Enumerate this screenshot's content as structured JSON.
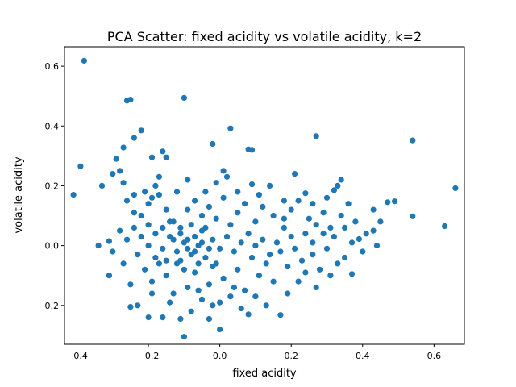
{
  "chart_data": {
    "type": "scatter",
    "title": "PCA Scatter: fixed acidity vs volatile acidity, k=2",
    "xlabel": "fixed acidity",
    "ylabel": "volatile acidity",
    "xlim": [
      -0.435,
      0.685
    ],
    "ylim": [
      -0.33,
      0.665
    ],
    "x_ticks": [
      -0.4,
      -0.2,
      0.0,
      0.2,
      0.4,
      0.6
    ],
    "x_tick_labels": [
      "−0.4",
      "−0.2",
      "0.0",
      "0.2",
      "0.4",
      "0.6"
    ],
    "y_ticks": [
      -0.2,
      0.0,
      0.2,
      0.4,
      0.6
    ],
    "y_tick_labels": [
      "−0.2",
      "0.0",
      "0.2",
      "0.4",
      "0.6"
    ],
    "grid": false,
    "legend": "none",
    "marker_color": "#1f77b4",
    "points": [
      [
        -0.38,
        0.618
      ],
      [
        -0.1,
        0.494
      ],
      [
        -0.26,
        0.485
      ],
      [
        -0.25,
        0.488
      ],
      [
        -0.22,
        0.385
      ],
      [
        0.03,
        0.392
      ],
      [
        0.27,
        0.366
      ],
      [
        0.54,
        0.352
      ],
      [
        -0.27,
        0.328
      ],
      [
        0.08,
        0.322
      ],
      [
        0.09,
        0.32
      ],
      [
        -0.39,
        0.265
      ],
      [
        -0.41,
        0.17
      ],
      [
        0.66,
        0.192
      ],
      [
        0.63,
        0.065
      ],
      [
        0.54,
        0.098
      ],
      [
        0.49,
        0.148
      ],
      [
        0.47,
        0.145
      ],
      [
        0.45,
        0.08
      ],
      [
        0.43,
        0.05
      ],
      [
        0.39,
        0.022
      ],
      [
        0.37,
        -0.095
      ],
      [
        -0.34,
        0.0
      ],
      [
        -0.31,
        0.015
      ],
      [
        -0.3,
        -0.02
      ],
      [
        -0.31,
        -0.1
      ],
      [
        -0.25,
        -0.205
      ],
      [
        -0.23,
        -0.2
      ],
      [
        -0.2,
        -0.24
      ],
      [
        -0.16,
        -0.24
      ],
      [
        -0.11,
        -0.245
      ],
      [
        -0.1,
        -0.305
      ],
      [
        -0.03,
        -0.245
      ],
      [
        0.0,
        -0.28
      ],
      [
        0.08,
        -0.23
      ],
      [
        0.17,
        -0.232
      ],
      [
        -0.29,
        0.29
      ],
      [
        -0.28,
        0.25
      ],
      [
        -0.24,
        0.36
      ],
      [
        -0.19,
        0.295
      ],
      [
        -0.16,
        0.315
      ],
      [
        -0.15,
        0.295
      ],
      [
        -0.02,
        0.34
      ],
      [
        -0.01,
        0.21
      ],
      [
        0.01,
        0.25
      ],
      [
        0.09,
        0.205
      ],
      [
        0.14,
        0.2
      ],
      [
        0.21,
        0.24
      ],
      [
        0.24,
        0.175
      ],
      [
        0.32,
        0.185
      ],
      [
        0.33,
        0.2
      ],
      [
        0.34,
        0.22
      ],
      [
        -0.33,
        0.2
      ],
      [
        -0.3,
        0.24
      ],
      [
        -0.27,
        0.21
      ],
      [
        -0.26,
        0.15
      ],
      [
        -0.24,
        0.11
      ],
      [
        -0.22,
        0.1
      ],
      [
        -0.2,
        0.14
      ],
      [
        -0.18,
        0.2
      ],
      [
        -0.17,
        0.17
      ],
      [
        -0.15,
        0.12
      ],
      [
        -0.13,
        0.08
      ],
      [
        -0.11,
        0.06
      ],
      [
        -0.09,
        0.12
      ],
      [
        -0.07,
        0.15
      ],
      [
        -0.05,
        0.1
      ],
      [
        -0.03,
        0.13
      ],
      [
        -0.01,
        0.09
      ],
      [
        0.01,
        0.16
      ],
      [
        0.03,
        0.07
      ],
      [
        0.05,
        0.11
      ],
      [
        0.07,
        0.14
      ],
      [
        0.1,
        0.08
      ],
      [
        0.12,
        0.13
      ],
      [
        0.15,
        0.1
      ],
      [
        0.18,
        0.06
      ],
      [
        0.2,
        0.12
      ],
      [
        0.22,
        0.15
      ],
      [
        0.25,
        0.09
      ],
      [
        0.27,
        0.07
      ],
      [
        0.29,
        0.11
      ],
      [
        0.31,
        0.06
      ],
      [
        0.34,
        0.1
      ],
      [
        0.36,
        0.14
      ],
      [
        0.38,
        0.08
      ],
      [
        0.41,
        0.04
      ],
      [
        0.43,
        0.12
      ],
      [
        0.44,
        0.0
      ],
      [
        0.4,
        -0.02
      ],
      [
        0.37,
        0.01
      ],
      [
        0.35,
        -0.04
      ],
      [
        0.33,
        -0.06
      ],
      [
        0.3,
        -0.01
      ],
      [
        0.28,
        -0.08
      ],
      [
        0.26,
        -0.03
      ],
      [
        0.23,
        -0.05
      ],
      [
        0.21,
        -0.01
      ],
      [
        0.19,
        -0.07
      ],
      [
        0.17,
        -0.02
      ],
      [
        0.15,
        -0.12
      ],
      [
        0.13,
        -0.06
      ],
      [
        0.11,
        -0.1
      ],
      [
        0.09,
        -0.04
      ],
      [
        0.07,
        -0.15
      ],
      [
        0.05,
        -0.08
      ],
      [
        0.03,
        -0.17
      ],
      [
        0.01,
        -0.11
      ],
      [
        -0.01,
        -0.06
      ],
      [
        -0.03,
        -0.13
      ],
      [
        -0.05,
        -0.18
      ],
      [
        -0.07,
        -0.09
      ],
      [
        -0.09,
        -0.14
      ],
      [
        -0.11,
        -0.05
      ],
      [
        -0.13,
        -0.16
      ],
      [
        -0.15,
        -0.1
      ],
      [
        -0.17,
        -0.06
      ],
      [
        -0.19,
        -0.12
      ],
      [
        -0.21,
        -0.08
      ],
      [
        -0.23,
        -0.03
      ],
      [
        -0.25,
        -0.13
      ],
      [
        -0.27,
        -0.06
      ],
      [
        -0.28,
        0.05
      ],
      [
        -0.26,
        0.02
      ],
      [
        -0.24,
        0.06
      ],
      [
        -0.22,
        0.03
      ],
      [
        -0.2,
        0.0
      ],
      [
        -0.18,
        0.04
      ],
      [
        -0.16,
        -0.01
      ],
      [
        -0.14,
        0.03
      ],
      [
        -0.12,
        -0.02
      ],
      [
        -0.1,
        0.01
      ],
      [
        -0.08,
        -0.03
      ],
      [
        -0.06,
        0.0
      ],
      [
        -0.04,
        -0.04
      ],
      [
        -0.02,
        0.02
      ],
      [
        0.0,
        -0.01
      ],
      [
        0.02,
        0.03
      ],
      [
        0.04,
        -0.02
      ],
      [
        0.06,
        0.01
      ],
      [
        0.08,
        0.04
      ],
      [
        0.1,
        0.0
      ],
      [
        0.12,
        0.02
      ],
      [
        0.14,
        -0.03
      ],
      [
        0.16,
        0.01
      ],
      [
        -0.13,
        0.02
      ],
      [
        -0.11,
        0.04
      ],
      [
        -0.09,
        -0.01
      ],
      [
        -0.07,
        0.03
      ],
      [
        -0.05,
        0.05
      ],
      [
        -0.12,
        -0.06
      ],
      [
        -0.1,
        -0.08
      ],
      [
        -0.08,
        0.07
      ],
      [
        -0.06,
        -0.06
      ],
      [
        -0.04,
        0.06
      ],
      [
        -0.02,
        -0.07
      ],
      [
        -0.09,
        0.02
      ],
      [
        -0.07,
        -0.02
      ],
      [
        -0.05,
        0.01
      ],
      [
        -0.03,
        -0.01
      ],
      [
        -0.14,
        0.08
      ],
      [
        -0.16,
        0.06
      ],
      [
        -0.18,
        -0.04
      ],
      [
        -0.2,
        0.07
      ],
      [
        -0.15,
        -0.05
      ],
      [
        0.22,
        -0.12
      ],
      [
        0.24,
        -0.09
      ],
      [
        0.27,
        -0.14
      ],
      [
        0.31,
        -0.1
      ],
      [
        0.19,
        -0.16
      ],
      [
        0.13,
        -0.2
      ],
      [
        0.06,
        -0.21
      ],
      [
        -0.02,
        -0.2
      ],
      [
        -0.08,
        -0.22
      ],
      [
        -0.14,
        -0.19
      ],
      [
        -0.19,
        -0.16
      ],
      [
        0.1,
        -0.17
      ],
      [
        0.04,
        -0.14
      ],
      [
        -0.06,
        -0.15
      ],
      [
        0.0,
        -0.19
      ],
      [
        -0.21,
        0.18
      ],
      [
        -0.19,
        0.16
      ],
      [
        -0.12,
        0.18
      ],
      [
        -0.04,
        0.18
      ],
      [
        0.05,
        0.18
      ],
      [
        -0.24,
        0.17
      ],
      [
        -0.17,
        0.23
      ],
      [
        -0.09,
        0.22
      ],
      [
        0.02,
        0.23
      ],
      [
        0.11,
        0.17
      ],
      [
        0.18,
        0.15
      ],
      [
        0.26,
        0.14
      ],
      [
        0.3,
        0.16
      ],
      [
        0.35,
        0.06
      ],
      [
        0.32,
        0.03
      ],
      [
        0.24,
        0.04
      ],
      [
        0.2,
        0.03
      ],
      [
        0.18,
        0.09
      ],
      [
        0.26,
        0.01
      ],
      [
        0.29,
        0.04
      ]
    ]
  }
}
